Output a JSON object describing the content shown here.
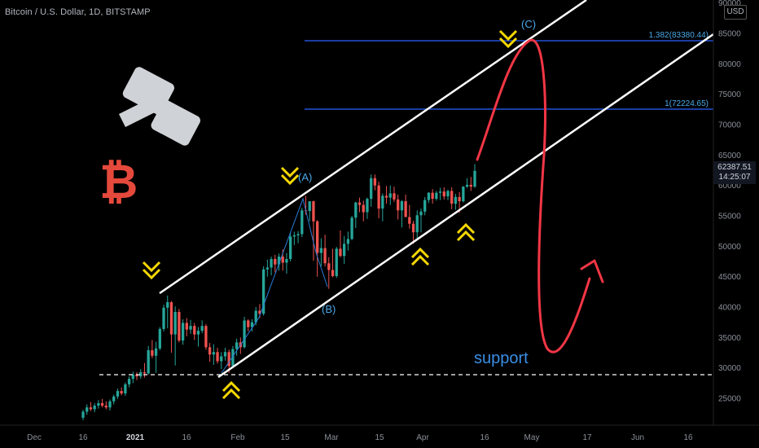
{
  "header": {
    "title": "Bitcoin / U.S. Dollar, 1D, BITSTAMP"
  },
  "currency_badge": "USD",
  "price_tag": {
    "price": "62387.51",
    "countdown": "14:25:07"
  },
  "colors": {
    "up_candle": "#26a69a",
    "down_candle": "#ef5350",
    "channel": "#ffffff",
    "fib_line": "#2962ff",
    "forecast": "#f23645",
    "arrow": "#f5d800",
    "wave_label": "#4aa8e8",
    "support_line": "#ffffff"
  },
  "annotations": {
    "wave_a": "(A)",
    "wave_b": "(B)",
    "wave_c": "(C)",
    "fib_upper": "1.382(83380.44)",
    "fib_lower": "1(72224.65)",
    "support": "support",
    "btc_symbol": "₿"
  },
  "icons": [
    "gavel-icon",
    "bitcoin-icon",
    "chevron-down-arrow-icon",
    "chevron-up-arrow-icon"
  ],
  "chart_data": {
    "type": "candlestick",
    "title": "Bitcoin / U.S. Dollar, 1D, BITSTAMP",
    "x_ticks": [
      "Dec",
      "16",
      "2021",
      "16",
      "Feb",
      "15",
      "Mar",
      "15",
      "Apr",
      "16",
      "May",
      "17",
      "Jun",
      "16"
    ],
    "y_ticks": [
      90000,
      85000,
      80000,
      75000,
      70000,
      65000,
      60000,
      55000,
      50000,
      45000,
      40000,
      35000,
      30000,
      25000
    ],
    "ylim": [
      21000,
      91000
    ],
    "last_price": 62387.51,
    "ohlc": [
      {
        "o": 21800,
        "h": 23100,
        "l": 21400,
        "c": 22800
      },
      {
        "o": 22800,
        "h": 24000,
        "l": 22300,
        "c": 23500
      },
      {
        "o": 23500,
        "h": 24400,
        "l": 22900,
        "c": 23200
      },
      {
        "o": 23200,
        "h": 24200,
        "l": 22700,
        "c": 23800
      },
      {
        "o": 23800,
        "h": 24700,
        "l": 23300,
        "c": 24200
      },
      {
        "o": 24200,
        "h": 24900,
        "l": 23500,
        "c": 23800
      },
      {
        "o": 23800,
        "h": 24500,
        "l": 23200,
        "c": 23500
      },
      {
        "o": 23500,
        "h": 24800,
        "l": 23000,
        "c": 24500
      },
      {
        "o": 24500,
        "h": 25600,
        "l": 24000,
        "c": 25300
      },
      {
        "o": 25300,
        "h": 26600,
        "l": 24900,
        "c": 26200
      },
      {
        "o": 26200,
        "h": 26800,
        "l": 25500,
        "c": 25800
      },
      {
        "o": 25800,
        "h": 27600,
        "l": 25400,
        "c": 27300
      },
      {
        "o": 27300,
        "h": 28600,
        "l": 26800,
        "c": 28200
      },
      {
        "o": 28200,
        "h": 29400,
        "l": 27500,
        "c": 28900
      },
      {
        "o": 28900,
        "h": 29300,
        "l": 28000,
        "c": 28600
      },
      {
        "o": 28600,
        "h": 29800,
        "l": 28200,
        "c": 29300
      },
      {
        "o": 29300,
        "h": 30800,
        "l": 28400,
        "c": 29100
      },
      {
        "o": 29100,
        "h": 33600,
        "l": 28900,
        "c": 32900
      },
      {
        "o": 32900,
        "h": 34600,
        "l": 31600,
        "c": 32000
      },
      {
        "o": 32000,
        "h": 34300,
        "l": 29200,
        "c": 33200
      },
      {
        "o": 33200,
        "h": 36700,
        "l": 32900,
        "c": 36400
      },
      {
        "o": 36400,
        "h": 40400,
        "l": 36000,
        "c": 39900
      },
      {
        "o": 39900,
        "h": 41900,
        "l": 36500,
        "c": 40800
      },
      {
        "o": 40800,
        "h": 41000,
        "l": 32500,
        "c": 35500
      },
      {
        "o": 35500,
        "h": 40100,
        "l": 30400,
        "c": 39200
      },
      {
        "o": 39200,
        "h": 39700,
        "l": 34200,
        "c": 34500
      },
      {
        "o": 34500,
        "h": 38000,
        "l": 33800,
        "c": 37400
      },
      {
        "o": 37400,
        "h": 38200,
        "l": 35200,
        "c": 36300
      },
      {
        "o": 36300,
        "h": 37900,
        "l": 35600,
        "c": 36900
      },
      {
        "o": 36900,
        "h": 37400,
        "l": 34600,
        "c": 35500
      },
      {
        "o": 35500,
        "h": 36700,
        "l": 33500,
        "c": 36100
      },
      {
        "o": 36100,
        "h": 37800,
        "l": 35700,
        "c": 36900
      },
      {
        "o": 36900,
        "h": 37200,
        "l": 33000,
        "c": 33400
      },
      {
        "o": 33400,
        "h": 34100,
        "l": 31000,
        "c": 32200
      },
      {
        "o": 32200,
        "h": 33900,
        "l": 30500,
        "c": 32600
      },
      {
        "o": 32600,
        "h": 33300,
        "l": 30700,
        "c": 31100
      },
      {
        "o": 31100,
        "h": 32600,
        "l": 29800,
        "c": 31900
      },
      {
        "o": 31900,
        "h": 33300,
        "l": 31200,
        "c": 32600
      },
      {
        "o": 32600,
        "h": 33000,
        "l": 29200,
        "c": 30300
      },
      {
        "o": 30300,
        "h": 33600,
        "l": 30000,
        "c": 33100
      },
      {
        "o": 33100,
        "h": 34800,
        "l": 32000,
        "c": 34200
      },
      {
        "o": 34200,
        "h": 35000,
        "l": 32300,
        "c": 33400
      },
      {
        "o": 33400,
        "h": 38400,
        "l": 33200,
        "c": 37800
      },
      {
        "o": 37800,
        "h": 38000,
        "l": 36000,
        "c": 36700
      },
      {
        "o": 36700,
        "h": 38000,
        "l": 36000,
        "c": 37500
      },
      {
        "o": 37500,
        "h": 40000,
        "l": 37000,
        "c": 39400
      },
      {
        "o": 39400,
        "h": 40500,
        "l": 38200,
        "c": 38900
      },
      {
        "o": 38900,
        "h": 46700,
        "l": 38600,
        "c": 46200
      },
      {
        "o": 46200,
        "h": 47800,
        "l": 45000,
        "c": 46500
      },
      {
        "o": 46500,
        "h": 48300,
        "l": 45200,
        "c": 47900
      },
      {
        "o": 47900,
        "h": 48600,
        "l": 45700,
        "c": 47000
      },
      {
        "o": 47000,
        "h": 48800,
        "l": 46000,
        "c": 48300
      },
      {
        "o": 48300,
        "h": 49500,
        "l": 46000,
        "c": 47300
      },
      {
        "o": 47300,
        "h": 48900,
        "l": 45500,
        "c": 47900
      },
      {
        "o": 47900,
        "h": 52300,
        "l": 47500,
        "c": 51600
      },
      {
        "o": 51600,
        "h": 52400,
        "l": 50200,
        "c": 51800
      },
      {
        "o": 51800,
        "h": 52500,
        "l": 50500,
        "c": 52000
      },
      {
        "o": 52000,
        "h": 56300,
        "l": 51500,
        "c": 55900
      },
      {
        "o": 55900,
        "h": 58300,
        "l": 55200,
        "c": 55800
      },
      {
        "o": 55800,
        "h": 57400,
        "l": 54100,
        "c": 57400
      },
      {
        "o": 57400,
        "h": 57500,
        "l": 47600,
        "c": 54100
      },
      {
        "o": 54100,
        "h": 54300,
        "l": 45000,
        "c": 48900
      },
      {
        "o": 48900,
        "h": 51300,
        "l": 46700,
        "c": 49700
      },
      {
        "o": 49700,
        "h": 51900,
        "l": 46700,
        "c": 47200
      },
      {
        "o": 47200,
        "h": 48200,
        "l": 43000,
        "c": 46100
      },
      {
        "o": 46100,
        "h": 49600,
        "l": 44900,
        "c": 45100
      },
      {
        "o": 45100,
        "h": 49900,
        "l": 44800,
        "c": 49600
      },
      {
        "o": 49600,
        "h": 52600,
        "l": 48200,
        "c": 48400
      },
      {
        "o": 48400,
        "h": 51700,
        "l": 47100,
        "c": 50400
      },
      {
        "o": 50400,
        "h": 52400,
        "l": 49300,
        "c": 51200
      },
      {
        "o": 51200,
        "h": 55000,
        "l": 51000,
        "c": 54700
      },
      {
        "o": 54700,
        "h": 57300,
        "l": 53000,
        "c": 57200
      },
      {
        "o": 57200,
        "h": 58000,
        "l": 55600,
        "c": 56800
      },
      {
        "o": 56800,
        "h": 57500,
        "l": 54100,
        "c": 55600
      },
      {
        "o": 55600,
        "h": 58000,
        "l": 54500,
        "c": 57800
      },
      {
        "o": 57800,
        "h": 61800,
        "l": 56500,
        "c": 61200
      },
      {
        "o": 61200,
        "h": 61800,
        "l": 59200,
        "c": 60000
      },
      {
        "o": 60000,
        "h": 60600,
        "l": 54600,
        "c": 56200
      },
      {
        "o": 56200,
        "h": 58700,
        "l": 54100,
        "c": 58300
      },
      {
        "o": 58300,
        "h": 59900,
        "l": 57000,
        "c": 58000
      },
      {
        "o": 58000,
        "h": 60000,
        "l": 56800,
        "c": 58700
      },
      {
        "o": 58700,
        "h": 59800,
        "l": 57300,
        "c": 57700
      },
      {
        "o": 57700,
        "h": 58500,
        "l": 54400,
        "c": 55900
      },
      {
        "o": 55900,
        "h": 57600,
        "l": 53100,
        "c": 57400
      },
      {
        "o": 57400,
        "h": 58500,
        "l": 55200,
        "c": 54800
      },
      {
        "o": 54800,
        "h": 56800,
        "l": 52900,
        "c": 53700
      },
      {
        "o": 53700,
        "h": 54200,
        "l": 50400,
        "c": 52300
      },
      {
        "o": 52300,
        "h": 55900,
        "l": 51200,
        "c": 55100
      },
      {
        "o": 55100,
        "h": 56200,
        "l": 52300,
        "c": 55700
      },
      {
        "o": 55700,
        "h": 58100,
        "l": 55100,
        "c": 57600
      },
      {
        "o": 57600,
        "h": 58900,
        "l": 57100,
        "c": 58800
      },
      {
        "o": 58800,
        "h": 59400,
        "l": 57000,
        "c": 57800
      },
      {
        "o": 57800,
        "h": 59100,
        "l": 57500,
        "c": 58800
      },
      {
        "o": 58800,
        "h": 59600,
        "l": 57600,
        "c": 59000
      },
      {
        "o": 59000,
        "h": 59700,
        "l": 57700,
        "c": 58200
      },
      {
        "o": 58200,
        "h": 59300,
        "l": 57600,
        "c": 59100
      },
      {
        "o": 59100,
        "h": 59700,
        "l": 56100,
        "c": 57000
      },
      {
        "o": 57000,
        "h": 58600,
        "l": 56000,
        "c": 58100
      },
      {
        "o": 58100,
        "h": 58900,
        "l": 55500,
        "c": 57400
      },
      {
        "o": 57400,
        "h": 59900,
        "l": 57200,
        "c": 59800
      },
      {
        "o": 59800,
        "h": 61200,
        "l": 59600,
        "c": 60100
      },
      {
        "o": 60100,
        "h": 61400,
        "l": 59100,
        "c": 59800
      },
      {
        "o": 59800,
        "h": 63500,
        "l": 59600,
        "c": 62400
      }
    ],
    "channel_upper": {
      "from": {
        "x": "2021-01-08",
        "y": 42000
      },
      "to": {
        "x": "2021-05-10",
        "y": 91000
      }
    },
    "channel_lower": {
      "from": {
        "x": "2021-01-27",
        "y": 29000
      },
      "to": {
        "x": "2021-06-21",
        "y": 84500
      }
    },
    "fib_levels": [
      {
        "label": "1.382",
        "value": 83380.44
      },
      {
        "label": "1",
        "value": 72224.65
      }
    ],
    "support_level": 29000,
    "wave_labels": [
      {
        "label": "(A)",
        "value": 58000
      },
      {
        "label": "(B)",
        "value": 43000
      },
      {
        "label": "(C)",
        "value": 85000
      }
    ]
  }
}
